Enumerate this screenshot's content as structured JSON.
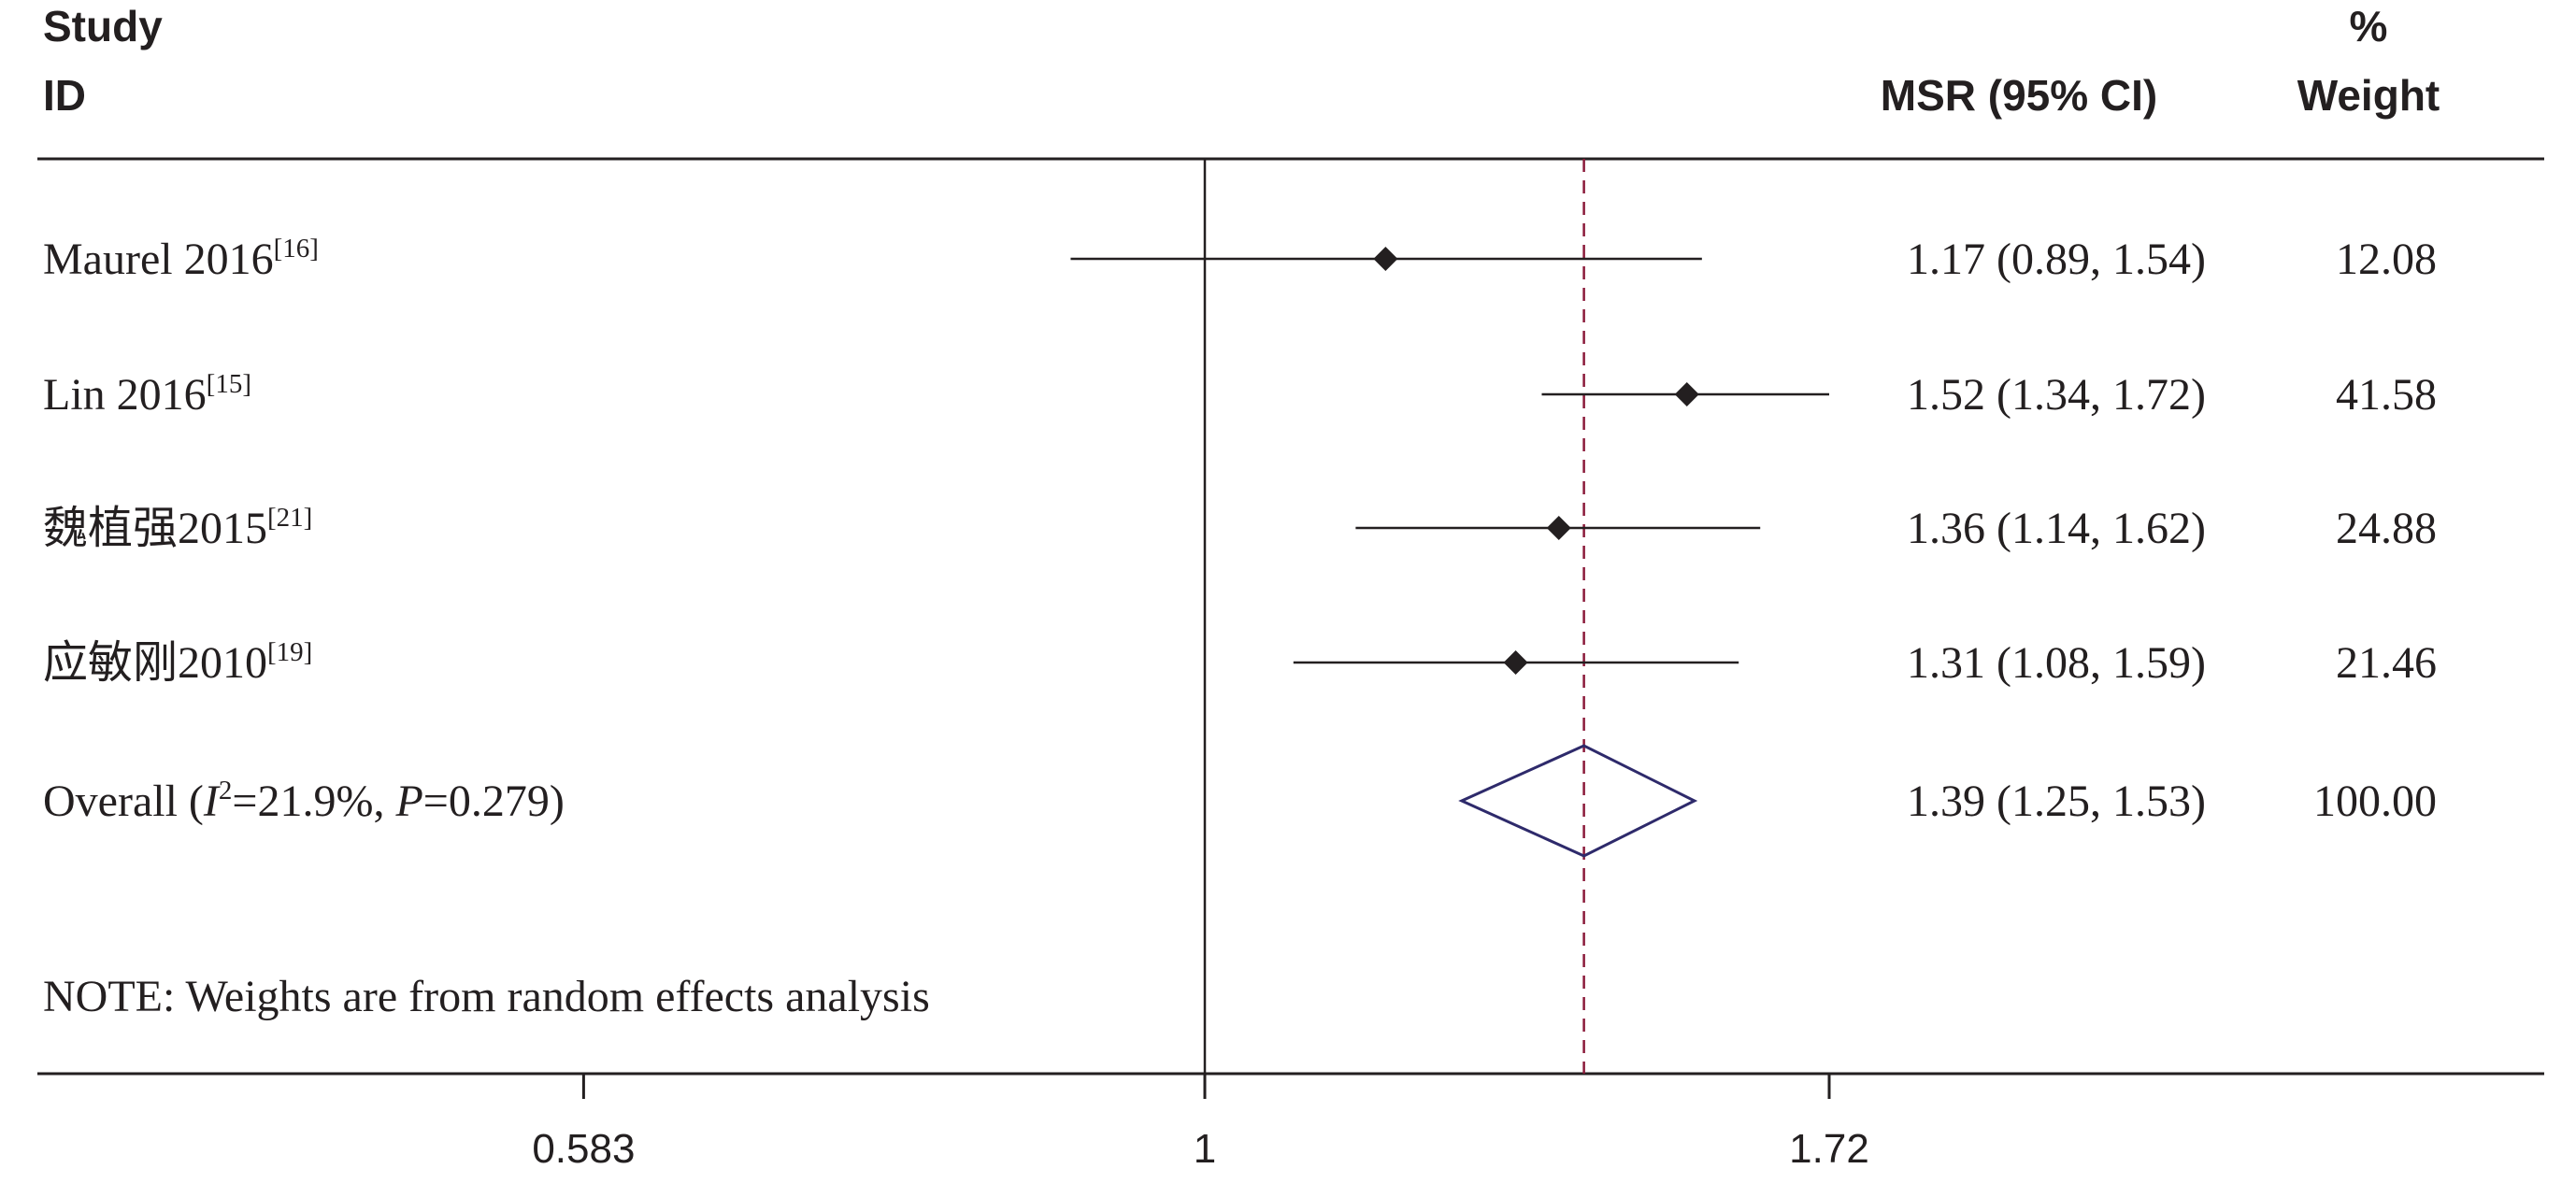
{
  "header": {
    "study_line1": "Study",
    "study_line2": "ID",
    "effect_label": "MSR (95% CI)",
    "weight_line1": "%",
    "weight_line2": "Weight"
  },
  "note": "NOTE: Weights are from random effects analysis",
  "chart_data": {
    "type": "forest",
    "scale": "log",
    "reference_value": 1,
    "xticks": [
      0.583,
      1,
      1.72
    ],
    "xtick_labels": [
      "0.583",
      "1",
      "1.72"
    ],
    "studies": [
      {
        "label": "Maurel 2016",
        "ref": "[16]",
        "estimate": 1.17,
        "lower": 0.89,
        "upper": 1.54,
        "ci_text": "1.17 (0.89, 1.54)",
        "weight": "12.08"
      },
      {
        "label": "Lin 2016",
        "ref": "[15]",
        "estimate": 1.52,
        "lower": 1.34,
        "upper": 1.72,
        "ci_text": "1.52 (1.34, 1.72)",
        "weight": "41.58"
      },
      {
        "label": "魏植强2015",
        "ref": "[21]",
        "estimate": 1.36,
        "lower": 1.14,
        "upper": 1.62,
        "ci_text": "1.36 (1.14, 1.62)",
        "weight": "24.88"
      },
      {
        "label": "应敏刚2010",
        "ref": "[19]",
        "estimate": 1.31,
        "lower": 1.08,
        "upper": 1.59,
        "ci_text": "1.31 (1.08, 1.59)",
        "weight": "21.46"
      }
    ],
    "overall": {
      "label_prefix": "Overall (",
      "i2_symbol": "I",
      "i2_sup": "2",
      "i2_value": "=21.9%, ",
      "p_symbol": "P",
      "p_value": "=0.279)",
      "estimate": 1.39,
      "lower": 1.25,
      "upper": 1.53,
      "ci_text": "1.39 (1.25, 1.53)",
      "weight": "100.00"
    },
    "colors": {
      "ink": "#231f20",
      "pooled_line": "#8b1a3a",
      "overall_diamond": "#2e2a6b"
    }
  }
}
